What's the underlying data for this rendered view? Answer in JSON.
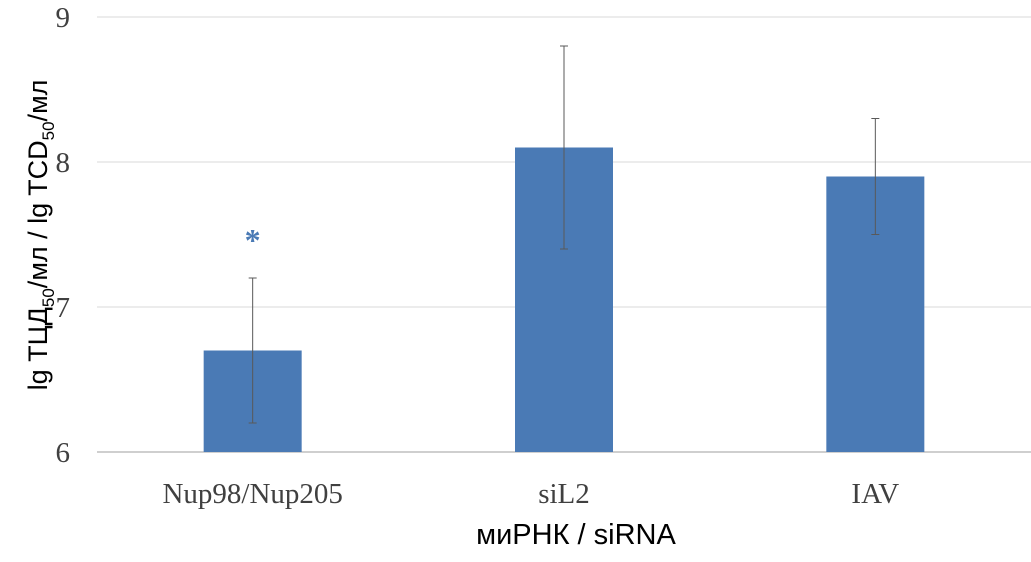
{
  "chart_data": {
    "type": "bar",
    "categories": [
      "Nup98/Nup205",
      "siL2",
      "IAV"
    ],
    "values": [
      6.7,
      8.1,
      7.9
    ],
    "error_low": [
      6.2,
      7.4,
      7.5
    ],
    "error_high": [
      7.2,
      8.8,
      8.3
    ],
    "annotations": [
      "*",
      "",
      ""
    ],
    "ylim": [
      6,
      9
    ],
    "yticks": [
      "6",
      "7",
      "8",
      "9"
    ],
    "xlabel": "миРНК / siRNA",
    "ylabel": {
      "part1": "lg ТЦД",
      "sub1": "50",
      "part2": "/мл / lg TCD",
      "sub2": "50",
      "part3": "/мл"
    },
    "grid": true,
    "legend": "none",
    "colors": {
      "bar": "#4a7ab5",
      "grid": "#d9d9d9",
      "axis": "#bfbfbf",
      "errorbar": "#595959",
      "annotation": "#4a7ab5"
    }
  }
}
